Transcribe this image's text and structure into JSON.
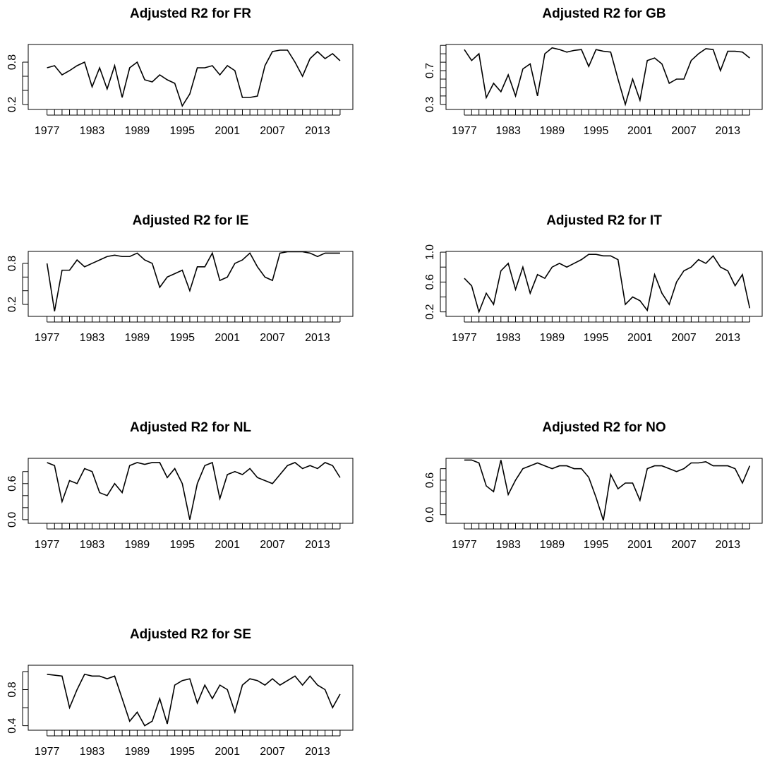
{
  "chart_data": [
    {
      "type": "line",
      "title": "Adjusted R2 for FR",
      "color": "#000000",
      "x": [
        1977,
        1978,
        1979,
        1980,
        1981,
        1982,
        1983,
        1984,
        1985,
        1986,
        1987,
        1988,
        1989,
        1990,
        1991,
        1992,
        1993,
        1994,
        1995,
        1996,
        1997,
        1998,
        1999,
        2000,
        2001,
        2002,
        2003,
        2004,
        2005,
        2006,
        2007,
        2008,
        2009,
        2010,
        2011,
        2012,
        2013,
        2014,
        2015,
        2016
      ],
      "values": [
        0.72,
        0.75,
        0.62,
        0.68,
        0.75,
        0.8,
        0.45,
        0.72,
        0.42,
        0.75,
        0.3,
        0.72,
        0.8,
        0.55,
        0.52,
        0.62,
        0.55,
        0.5,
        0.18,
        0.35,
        0.72,
        0.72,
        0.75,
        0.62,
        0.75,
        0.68,
        0.3,
        0.3,
        0.32,
        0.75,
        0.95,
        0.97,
        0.97,
        0.8,
        0.6,
        0.85,
        0.95,
        0.85,
        0.92,
        0.82
      ],
      "xlim": [
        1974.5,
        2017.7
      ],
      "xticks": [
        1977,
        1983,
        1989,
        1995,
        2001,
        2007,
        2013
      ],
      "xminorticks": [
        1977,
        1978,
        1979,
        1980,
        1981,
        1982,
        1983,
        1984,
        1985,
        1986,
        1987,
        1988,
        1989,
        1990,
        1991,
        1992,
        1993,
        1994,
        1995,
        1996,
        1997,
        1998,
        1999,
        2000,
        2001,
        2002,
        2003,
        2004,
        2005,
        2006,
        2007,
        2008,
        2009,
        2010,
        2011,
        2012,
        2013,
        2014,
        2015,
        2016
      ],
      "ylim": [
        0.13,
        1.05
      ],
      "yticks": [
        0.2,
        0.8
      ],
      "yminorticks": [
        0.2,
        0.4,
        0.6,
        0.8
      ]
    },
    {
      "type": "line",
      "title": "Adjusted R2 for GB",
      "color": "#000000",
      "x": [
        1977,
        1978,
        1979,
        1980,
        1981,
        1982,
        1983,
        1984,
        1985,
        1986,
        1987,
        1988,
        1989,
        1990,
        1991,
        1992,
        1993,
        1994,
        1995,
        1996,
        1997,
        1998,
        1999,
        2000,
        2001,
        2002,
        2003,
        2004,
        2005,
        2006,
        2007,
        2008,
        2009,
        2010,
        2011,
        2012,
        2013,
        2014,
        2015,
        2016
      ],
      "values": [
        0.95,
        0.82,
        0.9,
        0.38,
        0.55,
        0.45,
        0.65,
        0.4,
        0.72,
        0.78,
        0.4,
        0.9,
        0.97,
        0.95,
        0.92,
        0.94,
        0.95,
        0.75,
        0.95,
        0.93,
        0.92,
        0.6,
        0.3,
        0.6,
        0.35,
        0.82,
        0.85,
        0.78,
        0.55,
        0.6,
        0.6,
        0.82,
        0.9,
        0.96,
        0.95,
        0.7,
        0.93,
        0.93,
        0.92,
        0.85
      ],
      "xlim": [
        1974.5,
        2017.7
      ],
      "xticks": [
        1977,
        1983,
        1989,
        1995,
        2001,
        2007,
        2013
      ],
      "xminorticks": [
        1977,
        1978,
        1979,
        1980,
        1981,
        1982,
        1983,
        1984,
        1985,
        1986,
        1987,
        1988,
        1989,
        1990,
        1991,
        1992,
        1993,
        1994,
        1995,
        1996,
        1997,
        1998,
        1999,
        2000,
        2001,
        2002,
        2003,
        2004,
        2005,
        2006,
        2007,
        2008,
        2009,
        2010,
        2011,
        2012,
        2013,
        2014,
        2015,
        2016
      ],
      "ylim": [
        0.24,
        1.01
      ],
      "yticks": [
        0.3,
        0.7
      ],
      "yminorticks": [
        0.3,
        0.4,
        0.5,
        0.6,
        0.7,
        0.8,
        0.9,
        1
      ]
    },
    {
      "type": "line",
      "title": "Adjusted R2 for IE",
      "color": "#000000",
      "x": [
        1977,
        1978,
        1979,
        1980,
        1981,
        1982,
        1983,
        1984,
        1985,
        1986,
        1987,
        1988,
        1989,
        1990,
        1991,
        1992,
        1993,
        1994,
        1995,
        1996,
        1997,
        1998,
        1999,
        2000,
        2001,
        2002,
        2003,
        2004,
        2005,
        2006,
        2007,
        2008,
        2009,
        2010,
        2011,
        2012,
        2013,
        2014,
        2015,
        2016
      ],
      "values": [
        0.8,
        0.1,
        0.7,
        0.7,
        0.85,
        0.75,
        0.8,
        0.85,
        0.9,
        0.92,
        0.9,
        0.9,
        0.95,
        0.85,
        0.8,
        0.45,
        0.6,
        0.65,
        0.7,
        0.4,
        0.75,
        0.75,
        0.95,
        0.55,
        0.6,
        0.8,
        0.85,
        0.95,
        0.75,
        0.6,
        0.55,
        0.95,
        0.97,
        0.97,
        0.97,
        0.95,
        0.9,
        0.95,
        0.95,
        0.95
      ],
      "xlim": [
        1974.5,
        2017.7
      ],
      "xticks": [
        1977,
        1983,
        1989,
        1995,
        2001,
        2007,
        2013
      ],
      "xminorticks": [
        1977,
        1978,
        1979,
        1980,
        1981,
        1982,
        1983,
        1984,
        1985,
        1986,
        1987,
        1988,
        1989,
        1990,
        1991,
        1992,
        1993,
        1994,
        1995,
        1996,
        1997,
        1998,
        1999,
        2000,
        2001,
        2002,
        2003,
        2004,
        2005,
        2006,
        2007,
        2008,
        2009,
        2010,
        2011,
        2012,
        2013,
        2014,
        2015,
        2016
      ],
      "ylim": [
        0.025,
        0.975
      ],
      "yticks": [
        0.2,
        0.8
      ],
      "yminorticks": [
        0.2,
        0.4,
        0.6,
        0.8
      ]
    },
    {
      "type": "line",
      "title": "Adjusted R2 for IT",
      "color": "#000000",
      "x": [
        1977,
        1978,
        1979,
        1980,
        1981,
        1982,
        1983,
        1984,
        1985,
        1986,
        1987,
        1988,
        1989,
        1990,
        1991,
        1992,
        1993,
        1994,
        1995,
        1996,
        1997,
        1998,
        1999,
        2000,
        2001,
        2002,
        2003,
        2004,
        2005,
        2006,
        2007,
        2008,
        2009,
        2010,
        2011,
        2012,
        2013,
        2014,
        2015,
        2016
      ],
      "values": [
        0.65,
        0.55,
        0.2,
        0.45,
        0.3,
        0.75,
        0.85,
        0.5,
        0.8,
        0.45,
        0.7,
        0.65,
        0.8,
        0.85,
        0.8,
        0.85,
        0.9,
        0.97,
        0.97,
        0.95,
        0.95,
        0.9,
        0.3,
        0.4,
        0.35,
        0.22,
        0.7,
        0.45,
        0.3,
        0.6,
        0.75,
        0.8,
        0.9,
        0.85,
        0.95,
        0.8,
        0.75,
        0.55,
        0.7,
        0.25
      ],
      "xlim": [
        1974.5,
        2017.7
      ],
      "xticks": [
        1977,
        1983,
        1989,
        1995,
        2001,
        2007,
        2013
      ],
      "xminorticks": [
        1977,
        1978,
        1979,
        1980,
        1981,
        1982,
        1983,
        1984,
        1985,
        1986,
        1987,
        1988,
        1989,
        1990,
        1991,
        1992,
        1993,
        1994,
        1995,
        1996,
        1997,
        1998,
        1999,
        2000,
        2001,
        2002,
        2003,
        2004,
        2005,
        2006,
        2007,
        2008,
        2009,
        2010,
        2011,
        2012,
        2013,
        2014,
        2015,
        2016
      ],
      "ylim": [
        0.14,
        1.01
      ],
      "yticks": [
        0.2,
        0.6,
        {
          "value": 1,
          "label": "1.0"
        }
      ],
      "yminorticks": [
        0.2,
        0.4,
        0.6,
        0.8,
        1
      ]
    },
    {
      "type": "line",
      "title": "Adjusted R2 for NL",
      "color": "#000000",
      "x": [
        1977,
        1978,
        1979,
        1980,
        1981,
        1982,
        1983,
        1984,
        1985,
        1986,
        1987,
        1988,
        1989,
        1990,
        1991,
        1992,
        1993,
        1994,
        1995,
        1996,
        1997,
        1998,
        1999,
        2000,
        2001,
        2002,
        2003,
        2004,
        2005,
        2006,
        2007,
        2008,
        2009,
        2010,
        2011,
        2012,
        2013,
        2014,
        2015,
        2016
      ],
      "values": [
        0.95,
        0.9,
        0.3,
        0.65,
        0.6,
        0.85,
        0.8,
        0.45,
        0.4,
        0.6,
        0.45,
        0.9,
        0.95,
        0.92,
        0.95,
        0.95,
        0.7,
        0.85,
        0.6,
        0.0,
        0.6,
        0.9,
        0.95,
        0.35,
        0.75,
        0.8,
        0.75,
        0.85,
        0.7,
        0.65,
        0.6,
        0.75,
        0.9,
        0.95,
        0.85,
        0.9,
        0.85,
        0.95,
        0.9,
        0.7
      ],
      "xlim": [
        1974.5,
        2017.7
      ],
      "xticks": [
        1977,
        1983,
        1989,
        1995,
        2001,
        2007,
        2013
      ],
      "xminorticks": [
        1977,
        1978,
        1979,
        1980,
        1981,
        1982,
        1983,
        1984,
        1985,
        1986,
        1987,
        1988,
        1989,
        1990,
        1991,
        1992,
        1993,
        1994,
        1995,
        1996,
        1997,
        1998,
        1999,
        2000,
        2001,
        2002,
        2003,
        2004,
        2005,
        2006,
        2007,
        2008,
        2009,
        2010,
        2011,
        2012,
        2013,
        2014,
        2015,
        2016
      ],
      "ylim": [
        -0.06,
        1.02
      ],
      "yticks": [
        {
          "value": 0,
          "label": "0.0"
        },
        0.6
      ],
      "yminorticks": [
        0,
        0.2,
        0.4,
        0.6,
        0.8
      ]
    },
    {
      "type": "line",
      "title": "Adjusted R2 for NO",
      "color": "#000000",
      "x": [
        1977,
        1978,
        1979,
        1980,
        1981,
        1982,
        1983,
        1984,
        1985,
        1986,
        1987,
        1988,
        1989,
        1990,
        1991,
        1992,
        1993,
        1994,
        1995,
        1996,
        1997,
        1998,
        1999,
        2000,
        2001,
        2002,
        2003,
        2004,
        2005,
        2006,
        2007,
        2008,
        2009,
        2010,
        2011,
        2012,
        2013,
        2014,
        2015,
        2016
      ],
      "values": [
        0.95,
        0.95,
        0.9,
        0.5,
        0.4,
        0.95,
        0.35,
        0.6,
        0.8,
        0.85,
        0.9,
        0.85,
        0.8,
        0.85,
        0.85,
        0.8,
        0.8,
        0.65,
        0.3,
        -0.1,
        0.7,
        0.45,
        0.55,
        0.55,
        0.25,
        0.8,
        0.85,
        0.85,
        0.8,
        0.75,
        0.8,
        0.9,
        0.9,
        0.92,
        0.85,
        0.85,
        0.85,
        0.8,
        0.55,
        0.85
      ],
      "xlim": [
        1974.5,
        2017.7
      ],
      "xticks": [
        1977,
        1983,
        1989,
        1995,
        2001,
        2007,
        2013
      ],
      "xminorticks": [
        1977,
        1978,
        1979,
        1980,
        1981,
        1982,
        1983,
        1984,
        1985,
        1986,
        1987,
        1988,
        1989,
        1990,
        1991,
        1992,
        1993,
        1994,
        1995,
        1996,
        1997,
        1998,
        1999,
        2000,
        2001,
        2002,
        2003,
        2004,
        2005,
        2006,
        2007,
        2008,
        2009,
        2010,
        2011,
        2012,
        2013,
        2014,
        2015,
        2016
      ],
      "ylim": [
        -0.15,
        0.98
      ],
      "yticks": [
        {
          "value": 0,
          "label": "0.0"
        },
        0.6
      ],
      "yminorticks": [
        0,
        0.2,
        0.4,
        0.6,
        0.8
      ]
    },
    {
      "type": "line",
      "title": "Adjusted R2 for SE",
      "color": "#000000",
      "x": [
        1977,
        1978,
        1979,
        1980,
        1981,
        1982,
        1983,
        1984,
        1985,
        1986,
        1987,
        1988,
        1989,
        1990,
        1991,
        1992,
        1993,
        1994,
        1995,
        1996,
        1997,
        1998,
        1999,
        2000,
        2001,
        2002,
        2003,
        2004,
        2005,
        2006,
        2007,
        2008,
        2009,
        2010,
        2011,
        2012,
        2013,
        2014,
        2015,
        2016
      ],
      "values": [
        0.97,
        0.96,
        0.95,
        0.6,
        0.8,
        0.97,
        0.95,
        0.95,
        0.92,
        0.95,
        0.7,
        0.45,
        0.55,
        0.4,
        0.45,
        0.7,
        0.42,
        0.85,
        0.9,
        0.92,
        0.65,
        0.85,
        0.7,
        0.85,
        0.8,
        0.55,
        0.85,
        0.92,
        0.9,
        0.85,
        0.92,
        0.85,
        0.9,
        0.95,
        0.85,
        0.95,
        0.85,
        0.8,
        0.6,
        0.75
      ],
      "xlim": [
        1974.5,
        2017.7
      ],
      "xticks": [
        1977,
        1983,
        1989,
        1995,
        2001,
        2007,
        2013
      ],
      "xminorticks": [
        1977,
        1978,
        1979,
        1980,
        1981,
        1982,
        1983,
        1984,
        1985,
        1986,
        1987,
        1988,
        1989,
        1990,
        1991,
        1992,
        1993,
        1994,
        1995,
        1996,
        1997,
        1998,
        1999,
        2000,
        2001,
        2002,
        2003,
        2004,
        2005,
        2006,
        2007,
        2008,
        2009,
        2010,
        2011,
        2012,
        2013,
        2014,
        2015,
        2016
      ],
      "ylim": [
        0.35,
        1.07
      ],
      "yticks": [
        0.4,
        0.8
      ],
      "yminorticks": [
        0.4,
        0.6,
        0.8,
        1
      ]
    }
  ]
}
